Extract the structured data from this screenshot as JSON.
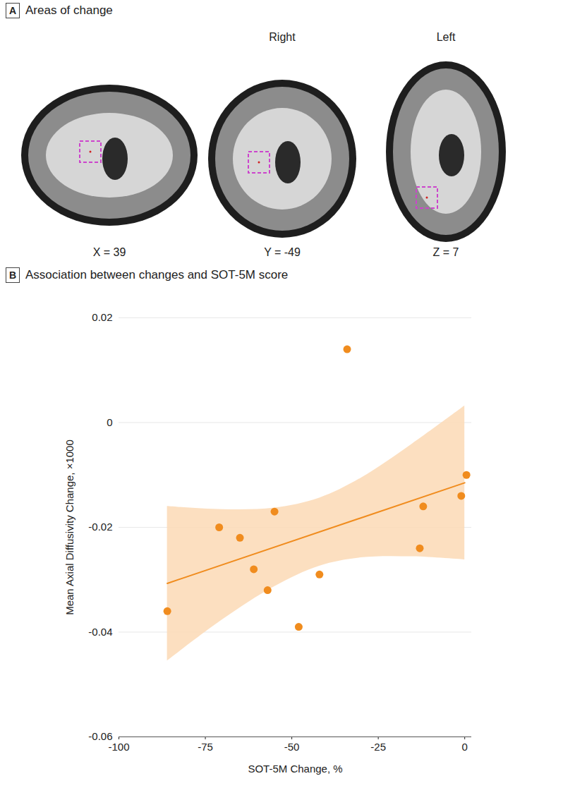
{
  "chart_data": [
    {
      "type": "images",
      "panel_label": "A",
      "title": "Areas of change",
      "images": [
        {
          "label": "X = 39"
        },
        {
          "label": "Y = -49",
          "heading": "Right"
        },
        {
          "label": "Z = 7",
          "heading": "Left"
        }
      ]
    },
    {
      "type": "scatter",
      "panel_label": "B",
      "title": "Association between changes and SOT-5M score",
      "x_label": "SOT-5M Change, %",
      "y_label": "Mean Axial Diffusivity Change, ×1000",
      "x": [
        -86,
        -71,
        -65,
        -61,
        -57,
        -55,
        -48,
        -42,
        -34,
        -13,
        -12,
        -1,
        0.5
      ],
      "values": [
        -0.036,
        -0.02,
        -0.022,
        -0.028,
        -0.032,
        -0.017,
        -0.039,
        -0.029,
        0.014,
        -0.024,
        -0.016,
        -0.014,
        -0.01
      ],
      "color": "#f08c1e",
      "marker": "circle",
      "fit": {
        "x": [
          -86,
          0
        ],
        "values": [
          -0.0307,
          -0.0115
        ],
        "color": "#f08c1e"
      },
      "band": {
        "x": [
          -86,
          -70,
          -55,
          -42,
          -30,
          -15,
          0
        ],
        "lower": [
          -0.0455,
          -0.0376,
          -0.0313,
          -0.0274,
          -0.0258,
          -0.0256,
          -0.0262
        ],
        "upper": [
          -0.016,
          -0.0166,
          -0.0163,
          -0.0144,
          -0.0106,
          -0.004,
          0.0032
        ],
        "color": "#fbd9b5"
      },
      "xlim": [
        -100,
        2
      ],
      "xticks": [
        -100,
        -75,
        -50,
        -25,
        0
      ],
      "ylim": [
        -0.06,
        0.02
      ],
      "yticks": [
        -0.06,
        -0.04,
        -0.02,
        0,
        0.02
      ],
      "grid": true
    }
  ]
}
